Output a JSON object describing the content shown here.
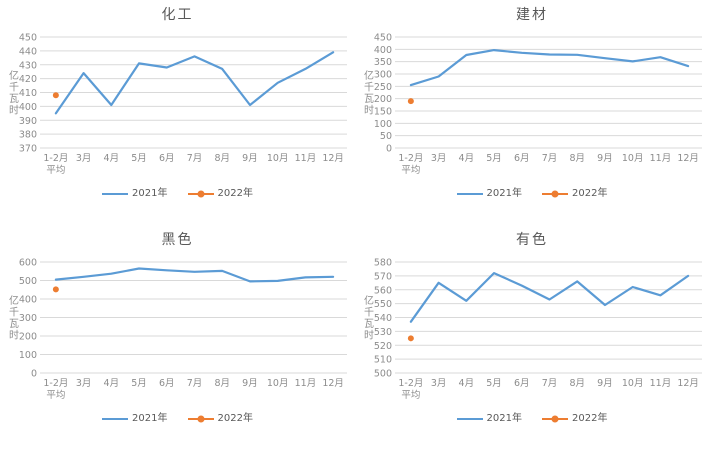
{
  "colors": {
    "series_2021": "#5B9BD5",
    "series_2022": "#ED7D31",
    "gridline": "#D9D9D9",
    "tick_text": "#8C8C8C",
    "axis_title_text": "#8C8C8C",
    "title_text": "#595959",
    "legend_text": "#595959",
    "background": "#FFFFFF"
  },
  "chart_data": [
    {
      "type": "line",
      "title": "化工",
      "ylabel": "亿千瓦时",
      "xlabel": "",
      "grid": true,
      "legend_position": "bottom",
      "ylim": [
        370,
        450
      ],
      "ytick_step": 10,
      "categories": [
        "1-2月\n平均",
        "3月",
        "4月",
        "5月",
        "6月",
        "7月",
        "8月",
        "9月",
        "10月",
        "11月",
        "12月"
      ],
      "series": [
        {
          "name": "2021年",
          "color": "#5B9BD5",
          "marker": "line",
          "values": [
            395,
            424,
            401,
            431,
            428,
            436,
            427,
            401,
            417,
            427,
            439
          ]
        },
        {
          "name": "2022年",
          "color": "#ED7D31",
          "marker": "line-dot",
          "values": [
            408,
            null,
            null,
            null,
            null,
            null,
            null,
            null,
            null,
            null,
            null
          ]
        }
      ]
    },
    {
      "type": "line",
      "title": "建材",
      "ylabel": "亿千瓦时",
      "xlabel": "",
      "grid": true,
      "legend_position": "bottom",
      "ylim": [
        0,
        450
      ],
      "ytick_step": 50,
      "categories": [
        "1-2月\n平均",
        "3月",
        "4月",
        "5月",
        "6月",
        "7月",
        "8月",
        "9月",
        "10月",
        "11月",
        "12月"
      ],
      "series": [
        {
          "name": "2021年",
          "color": "#5B9BD5",
          "marker": "line",
          "values": [
            255,
            290,
            377,
            397,
            386,
            379,
            378,
            364,
            351,
            368,
            332
          ]
        },
        {
          "name": "2022年",
          "color": "#ED7D31",
          "marker": "line-dot",
          "values": [
            190,
            null,
            null,
            null,
            null,
            null,
            null,
            null,
            null,
            null,
            null
          ]
        }
      ]
    },
    {
      "type": "line",
      "title": "黑色",
      "ylabel": "亿千瓦时",
      "xlabel": "",
      "grid": true,
      "legend_position": "bottom",
      "ylim": [
        0,
        600
      ],
      "ytick_step": 100,
      "categories": [
        "1-2月\n平均",
        "3月",
        "4月",
        "5月",
        "6月",
        "7月",
        "8月",
        "9月",
        "10月",
        "11月",
        "12月"
      ],
      "series": [
        {
          "name": "2021年",
          "color": "#5B9BD5",
          "marker": "line",
          "values": [
            505,
            520,
            537,
            565,
            555,
            547,
            552,
            495,
            498,
            517,
            520
          ]
        },
        {
          "name": "2022年",
          "color": "#ED7D31",
          "marker": "line-dot",
          "values": [
            452,
            null,
            null,
            null,
            null,
            null,
            null,
            null,
            null,
            null,
            null
          ]
        }
      ]
    },
    {
      "type": "line",
      "title": "有色",
      "ylabel": "亿千瓦时",
      "xlabel": "",
      "grid": true,
      "legend_position": "bottom",
      "ylim": [
        500,
        580
      ],
      "ytick_step": 10,
      "categories": [
        "1-2月\n平均",
        "3月",
        "4月",
        "5月",
        "6月",
        "7月",
        "8月",
        "9月",
        "10月",
        "11月",
        "12月"
      ],
      "series": [
        {
          "name": "2021年",
          "color": "#5B9BD5",
          "marker": "line",
          "values": [
            537,
            565,
            552,
            572,
            563,
            553,
            566,
            549,
            562,
            556,
            570
          ]
        },
        {
          "name": "2022年",
          "color": "#ED7D31",
          "marker": "line-dot",
          "values": [
            525,
            null,
            null,
            null,
            null,
            null,
            null,
            null,
            null,
            null,
            null
          ]
        }
      ]
    }
  ]
}
